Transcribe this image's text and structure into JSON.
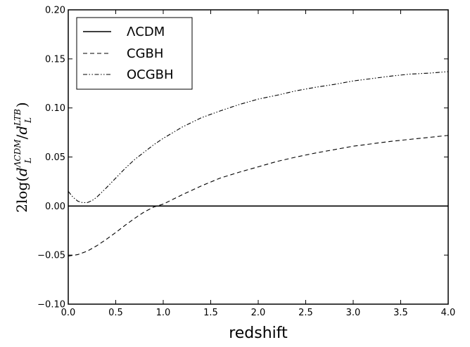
{
  "chart_data": {
    "type": "line",
    "xlabel": "redshift",
    "ylabel": "2log(d_L^{ΛCDM}/d_L^{LTB})",
    "ylabel_parts": {
      "prefix": "2log(",
      "d1": "d",
      "sub1": "L",
      "sup1": "ΛCDM",
      "slash": "/",
      "d2": "d",
      "sub2": "L",
      "sup2": "LTB",
      "suffix": ")"
    },
    "xlim": [
      0.0,
      4.0
    ],
    "ylim": [
      -0.1,
      0.2
    ],
    "xticks": [
      "0.0",
      "0.5",
      "1.0",
      "1.5",
      "2.0",
      "2.5",
      "3.0",
      "3.5",
      "4.0"
    ],
    "yticks": [
      "−0.10",
      "−0.05",
      "0.00",
      "0.05",
      "0.10",
      "0.15",
      "0.20"
    ],
    "grid": false,
    "legend_position": "top-left",
    "series": [
      {
        "name": "ΛCDM",
        "style": "solid",
        "x": [
          0.0,
          4.0
        ],
        "y": [
          0.0,
          0.0
        ]
      },
      {
        "name": "CGBH",
        "style": "dashed",
        "x": [
          0.0,
          0.1,
          0.2,
          0.3,
          0.4,
          0.5,
          0.6,
          0.7,
          0.8,
          0.9,
          1.0,
          1.2,
          1.4,
          1.6,
          1.8,
          2.0,
          2.2,
          2.4,
          2.6,
          2.8,
          3.0,
          3.2,
          3.4,
          3.6,
          3.8,
          4.0
        ],
        "y": [
          -0.051,
          -0.0495,
          -0.046,
          -0.0405,
          -0.034,
          -0.027,
          -0.0195,
          -0.0125,
          -0.006,
          -0.001,
          0.002,
          0.0115,
          0.0205,
          0.0285,
          0.0345,
          0.04,
          0.0455,
          0.05,
          0.054,
          0.0575,
          0.061,
          0.0635,
          0.066,
          0.068,
          0.07,
          0.072
        ]
      },
      {
        "name": "OCGBH",
        "style": "dash-dot-dot",
        "x": [
          0.0,
          0.05,
          0.1,
          0.15,
          0.2,
          0.25,
          0.3,
          0.4,
          0.5,
          0.6,
          0.7,
          0.8,
          0.9,
          1.0,
          1.2,
          1.4,
          1.6,
          1.8,
          2.0,
          2.2,
          2.4,
          2.6,
          2.8,
          3.0,
          3.2,
          3.4,
          3.6,
          3.8,
          4.0
        ],
        "y": [
          0.015,
          0.009,
          0.005,
          0.0035,
          0.0035,
          0.0055,
          0.009,
          0.0185,
          0.0285,
          0.0385,
          0.0475,
          0.055,
          0.0625,
          0.069,
          0.0805,
          0.09,
          0.097,
          0.1035,
          0.109,
          0.113,
          0.1175,
          0.121,
          0.124,
          0.1275,
          0.13,
          0.1325,
          0.1345,
          0.1355,
          0.137
        ]
      }
    ]
  }
}
